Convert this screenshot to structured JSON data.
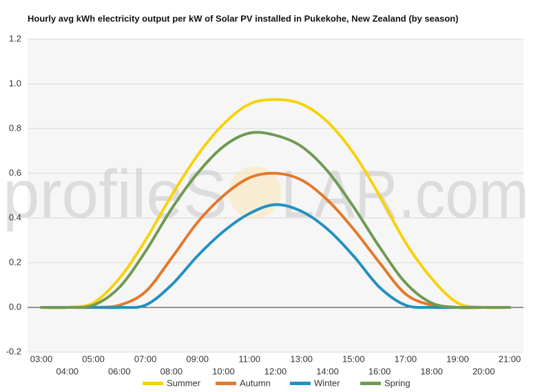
{
  "chart_data": {
    "type": "line",
    "title": "Hourly avg kWh electricity output per kW of Solar PV installed in Pukekohe, New Zealand (by season)",
    "watermark": [
      "profileS",
      "LAR.com"
    ],
    "categories": [
      "03:00",
      "04:00",
      "05:00",
      "06:00",
      "07:00",
      "08:00",
      "09:00",
      "10:00",
      "11:00",
      "12:00",
      "13:00",
      "14:00",
      "15:00",
      "16:00",
      "17:00",
      "18:00",
      "19:00",
      "20:00",
      "21:00"
    ],
    "series": [
      {
        "name": "Summer",
        "color": "#f7d20a",
        "values": [
          0,
          0,
          0.02,
          0.13,
          0.3,
          0.5,
          0.68,
          0.82,
          0.91,
          0.93,
          0.91,
          0.83,
          0.69,
          0.5,
          0.29,
          0.13,
          0.02,
          0,
          0
        ]
      },
      {
        "name": "Autumn",
        "color": "#e4782a",
        "values": [
          0,
          0,
          0,
          0.01,
          0.07,
          0.22,
          0.38,
          0.5,
          0.58,
          0.6,
          0.57,
          0.48,
          0.35,
          0.2,
          0.06,
          0.01,
          0,
          0,
          0
        ]
      },
      {
        "name": "Winter",
        "color": "#2290c2",
        "values": [
          0,
          0,
          0,
          0,
          0.01,
          0.1,
          0.23,
          0.34,
          0.42,
          0.46,
          0.43,
          0.35,
          0.23,
          0.09,
          0.01,
          0,
          0,
          0,
          0
        ]
      },
      {
        "name": "Spring",
        "color": "#6f9a52",
        "values": [
          0,
          0,
          0.01,
          0.09,
          0.25,
          0.44,
          0.6,
          0.72,
          0.78,
          0.77,
          0.72,
          0.61,
          0.45,
          0.27,
          0.11,
          0.02,
          0,
          0,
          0
        ]
      }
    ],
    "ylim": [
      -0.2,
      1.2
    ],
    "yticks": [
      -0.2,
      {
        "value": 0,
        "label": "0.0"
      },
      0.2,
      0.4,
      0.6,
      0.8,
      {
        "value": 1,
        "label": "1.0"
      },
      1.2
    ],
    "grid": true
  }
}
